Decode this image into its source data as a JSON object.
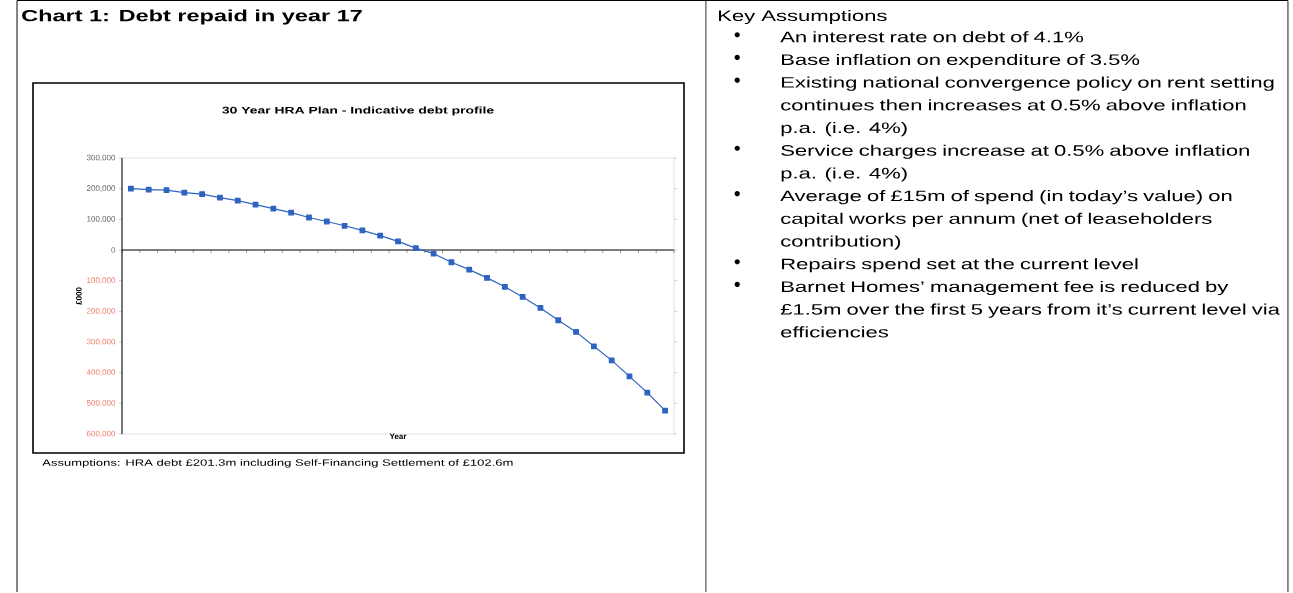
{
  "chart_data": {
    "type": "line",
    "title": "Chart 1: Debt repaid in year 17",
    "subtitle": "30 Year HRA Plan - Indicative debt profile",
    "xlabel": "Year",
    "ylabel": "£000",
    "categories": [
      null,
      null,
      null,
      null,
      null,
      null,
      null,
      null,
      null,
      null,
      null,
      null,
      null,
      null,
      null,
      null,
      null,
      null,
      null,
      null,
      null,
      null,
      null,
      null,
      null,
      null,
      null,
      null,
      null,
      null,
      null
    ],
    "series": [
      {
        "color": "#2e64c0",
        "values": [
          200000,
          197000,
          195000,
          187000,
          182000,
          171000,
          161000,
          148000,
          135000,
          122000,
          106000,
          93000,
          79000,
          64000,
          47000,
          28000,
          6000,
          -12000,
          -40000,
          -64000,
          -91000,
          -120000,
          -153000,
          -189000,
          -229000,
          -267000,
          -314000,
          -360000,
          -412000,
          -465000,
          -524000
        ]
      }
    ],
    "ylim": [
      -600000,
      300000
    ],
    "yticks": [
      {
        "value": -600000,
        "label": "600,000"
      },
      {
        "value": -500000,
        "label": "500,000"
      },
      {
        "value": -400000,
        "label": "400,000"
      },
      {
        "value": -300000,
        "label": "300,000"
      },
      {
        "value": -200000,
        "label": "200,000"
      },
      {
        "value": -100000,
        "label": "100,000"
      },
      {
        "value": 0,
        "label": "0"
      },
      {
        "value": 100000,
        "label": "100,000"
      },
      {
        "value": 200000,
        "label": "200,000"
      },
      {
        "value": 300000,
        "label": "300,000"
      }
    ],
    "tick_labels": "y",
    "marker": "square",
    "line_style": "solid",
    "annotations": [
      "Assumptions:  HRA  debt  £201.3m including Self-Financing Settlement of £102.6m",
      "Key Assumptions",
      "An interest rate on debt of 4.1%",
      "Base inflation on expenditure of 3.5%",
      "Existing national convergence policy on rent setting continues then increases at 0.5% above inflation p.a. (i.e. 4%)",
      "Service charges increase at 0.5% above inflation p.a. (i.e. 4%)",
      "Average of £15m of spend (in today’s value) on capital works per annum (net of leaseholders contribution)",
      "Repairs spend set at the current level",
      "Barnet Homes’ management fee is reduced by £1.5m over the first 5 years from it’s current level via efficiencies"
    ]
  }
}
